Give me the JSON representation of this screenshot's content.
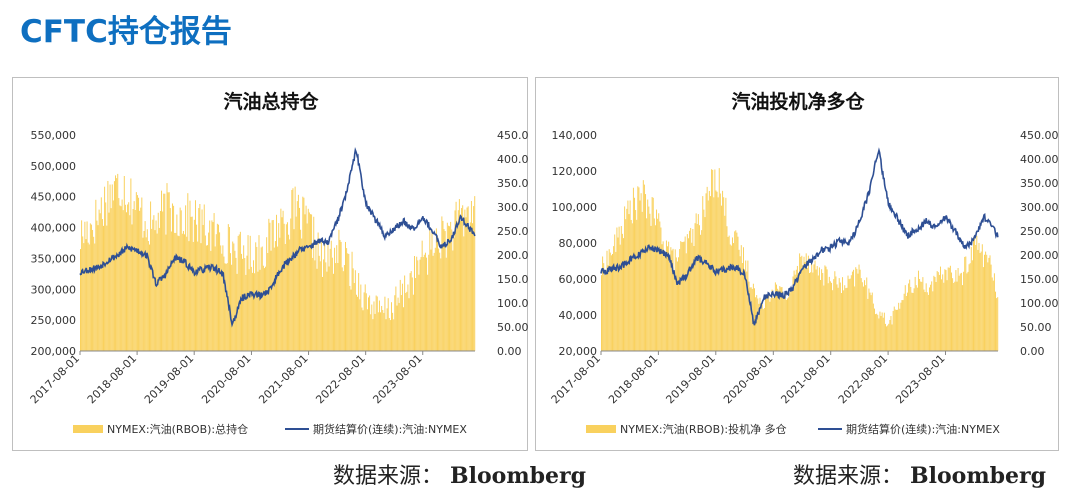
{
  "page": {
    "title": "CFTC持仓报告",
    "source_label": "数据来源：",
    "source_value": "Bloomberg"
  },
  "colors": {
    "title": "#0e6fc0",
    "bar": "#f9d15e",
    "line": "#2e4f94",
    "axis": "#888888"
  },
  "chart_data": [
    {
      "type": "bar",
      "title": "汽油总持仓",
      "x_tick_labels": [
        "2017-08-01",
        "2018-08-01",
        "2019-08-01",
        "2020-08-01",
        "2021-08-01",
        "2022-08-01",
        "2023-08-01"
      ],
      "x_range": [
        "2017-08-01",
        "2024-06-30"
      ],
      "y_left_ticks": [
        "200,000",
        "250,000",
        "300,000",
        "350,000",
        "400,000",
        "450,000",
        "500,000",
        "550,000"
      ],
      "y_left_lim": [
        200000,
        550000
      ],
      "y_right_ticks": [
        "0.00",
        "50.00",
        "100.00",
        "150.00",
        "200.00",
        "250.00",
        "300.00",
        "350.00",
        "400.00",
        "450.00"
      ],
      "y_right_lim": [
        0,
        450
      ],
      "grid": false,
      "legend_position": "bottom",
      "series": [
        {
          "name": "NYMEX:汽油(RBOB):总持仓",
          "kind": "bar",
          "axis": "left",
          "points": [
            [
              "2017-08-01",
              385000
            ],
            [
              "2017-11-01",
              410000
            ],
            [
              "2018-02-01",
              455000
            ],
            [
              "2018-05-01",
              470000
            ],
            [
              "2018-08-01",
              430000
            ],
            [
              "2018-11-01",
              400000
            ],
            [
              "2019-02-01",
              430000
            ],
            [
              "2019-05-01",
              420000
            ],
            [
              "2019-08-01",
              410000
            ],
            [
              "2019-11-01",
              395000
            ],
            [
              "2020-02-01",
              380000
            ],
            [
              "2020-05-01",
              360000
            ],
            [
              "2020-08-01",
              355000
            ],
            [
              "2020-11-01",
              370000
            ],
            [
              "2021-02-01",
              410000
            ],
            [
              "2021-05-01",
              425000
            ],
            [
              "2021-08-01",
              400000
            ],
            [
              "2021-11-01",
              340000
            ],
            [
              "2022-02-01",
              365000
            ],
            [
              "2022-05-01",
              330000
            ],
            [
              "2022-08-01",
              285000
            ],
            [
              "2022-11-01",
              260000
            ],
            [
              "2023-02-01",
              275000
            ],
            [
              "2023-05-01",
              310000
            ],
            [
              "2023-08-01",
              350000
            ],
            [
              "2023-11-01",
              380000
            ],
            [
              "2024-02-01",
              395000
            ],
            [
              "2024-05-01",
              420000
            ],
            [
              "2024-06-30",
              430000
            ]
          ]
        },
        {
          "name": "期货结算价(连续):汽油:NYMEX",
          "kind": "line",
          "axis": "right",
          "points": [
            [
              "2017-08-01",
              165
            ],
            [
              "2017-10-01",
              170
            ],
            [
              "2017-12-01",
              175
            ],
            [
              "2018-02-01",
              190
            ],
            [
              "2018-04-01",
              200
            ],
            [
              "2018-06-01",
              215
            ],
            [
              "2018-08-01",
              210
            ],
            [
              "2018-10-01",
              200
            ],
            [
              "2018-12-01",
              140
            ],
            [
              "2019-02-01",
              160
            ],
            [
              "2019-04-01",
              195
            ],
            [
              "2019-06-01",
              185
            ],
            [
              "2019-08-01",
              165
            ],
            [
              "2019-10-01",
              170
            ],
            [
              "2019-12-01",
              175
            ],
            [
              "2020-02-01",
              160
            ],
            [
              "2020-04-01",
              55
            ],
            [
              "2020-06-01",
              110
            ],
            [
              "2020-08-01",
              120
            ],
            [
              "2020-10-01",
              115
            ],
            [
              "2020-12-01",
              130
            ],
            [
              "2021-02-01",
              170
            ],
            [
              "2021-04-01",
              190
            ],
            [
              "2021-06-01",
              210
            ],
            [
              "2021-08-01",
              215
            ],
            [
              "2021-10-01",
              230
            ],
            [
              "2021-12-01",
              225
            ],
            [
              "2022-02-01",
              270
            ],
            [
              "2022-04-01",
              330
            ],
            [
              "2022-06-01",
              420
            ],
            [
              "2022-08-01",
              310
            ],
            [
              "2022-10-01",
              275
            ],
            [
              "2022-12-01",
              240
            ],
            [
              "2023-02-01",
              255
            ],
            [
              "2023-04-01",
              270
            ],
            [
              "2023-06-01",
              255
            ],
            [
              "2023-08-01",
              280
            ],
            [
              "2023-10-01",
              250
            ],
            [
              "2023-12-01",
              215
            ],
            [
              "2024-02-01",
              235
            ],
            [
              "2024-04-01",
              280
            ],
            [
              "2024-06-30",
              240
            ]
          ]
        }
      ]
    },
    {
      "type": "bar",
      "title": "汽油投机净多仓",
      "x_tick_labels": [
        "2017-08-01",
        "2018-08-01",
        "2019-08-01",
        "2020-08-01",
        "2021-08-01",
        "2022-08-01",
        "2023-08-01"
      ],
      "x_range": [
        "2017-08-01",
        "2024-06-30"
      ],
      "y_left_ticks": [
        "20,000",
        "40,000",
        "60,000",
        "80,000",
        "100,000",
        "120,000",
        "140,000"
      ],
      "y_left_lim": [
        20000,
        140000
      ],
      "y_right_ticks": [
        "0.00",
        "50.00",
        "100.00",
        "150.00",
        "200.00",
        "250.00",
        "300.00",
        "350.00",
        "400.00",
        "450.00"
      ],
      "y_right_lim": [
        0,
        450
      ],
      "grid": false,
      "legend_position": "bottom",
      "series": [
        {
          "name": "NYMEX:汽油(RBOB):投机净 多仓",
          "kind": "bar",
          "axis": "left",
          "points": [
            [
              "2017-08-01",
              65000
            ],
            [
              "2017-11-01",
              80000
            ],
            [
              "2018-02-01",
              100000
            ],
            [
              "2018-05-01",
              105000
            ],
            [
              "2018-08-01",
              90000
            ],
            [
              "2018-11-01",
              70000
            ],
            [
              "2019-02-01",
              80000
            ],
            [
              "2019-05-01",
              95000
            ],
            [
              "2019-08-01",
              120000
            ],
            [
              "2019-11-01",
              85000
            ],
            [
              "2020-02-01",
              70000
            ],
            [
              "2020-05-01",
              45000
            ],
            [
              "2020-08-01",
              55000
            ],
            [
              "2020-11-01",
              50000
            ],
            [
              "2021-02-01",
              75000
            ],
            [
              "2021-05-01",
              65000
            ],
            [
              "2021-08-01",
              60000
            ],
            [
              "2021-11-01",
              55000
            ],
            [
              "2022-02-01",
              65000
            ],
            [
              "2022-05-01",
              45000
            ],
            [
              "2022-08-01",
              35000
            ],
            [
              "2022-11-01",
              50000
            ],
            [
              "2023-02-01",
              60000
            ],
            [
              "2023-05-01",
              55000
            ],
            [
              "2023-08-01",
              65000
            ],
            [
              "2023-11-01",
              60000
            ],
            [
              "2024-02-01",
              80000
            ],
            [
              "2024-05-01",
              70000
            ],
            [
              "2024-06-30",
              48000
            ]
          ]
        },
        {
          "name": "期货结算价(连续):汽油:NYMEX",
          "kind": "line",
          "axis": "right",
          "points": [
            [
              "2017-08-01",
              165
            ],
            [
              "2017-10-01",
              170
            ],
            [
              "2017-12-01",
              175
            ],
            [
              "2018-02-01",
              190
            ],
            [
              "2018-04-01",
              200
            ],
            [
              "2018-06-01",
              215
            ],
            [
              "2018-08-01",
              210
            ],
            [
              "2018-10-01",
              200
            ],
            [
              "2018-12-01",
              140
            ],
            [
              "2019-02-01",
              160
            ],
            [
              "2019-04-01",
              195
            ],
            [
              "2019-06-01",
              185
            ],
            [
              "2019-08-01",
              165
            ],
            [
              "2019-10-01",
              170
            ],
            [
              "2019-12-01",
              175
            ],
            [
              "2020-02-01",
              160
            ],
            [
              "2020-04-01",
              55
            ],
            [
              "2020-06-01",
              110
            ],
            [
              "2020-08-01",
              120
            ],
            [
              "2020-10-01",
              115
            ],
            [
              "2020-12-01",
              130
            ],
            [
              "2021-02-01",
              170
            ],
            [
              "2021-04-01",
              190
            ],
            [
              "2021-06-01",
              210
            ],
            [
              "2021-08-01",
              215
            ],
            [
              "2021-10-01",
              230
            ],
            [
              "2021-12-01",
              225
            ],
            [
              "2022-02-01",
              270
            ],
            [
              "2022-04-01",
              330
            ],
            [
              "2022-06-01",
              420
            ],
            [
              "2022-08-01",
              310
            ],
            [
              "2022-10-01",
              275
            ],
            [
              "2022-12-01",
              240
            ],
            [
              "2023-02-01",
              255
            ],
            [
              "2023-04-01",
              270
            ],
            [
              "2023-06-01",
              255
            ],
            [
              "2023-08-01",
              280
            ],
            [
              "2023-10-01",
              250
            ],
            [
              "2023-12-01",
              215
            ],
            [
              "2024-02-01",
              235
            ],
            [
              "2024-04-01",
              280
            ],
            [
              "2024-06-30",
              240
            ]
          ]
        }
      ]
    }
  ]
}
